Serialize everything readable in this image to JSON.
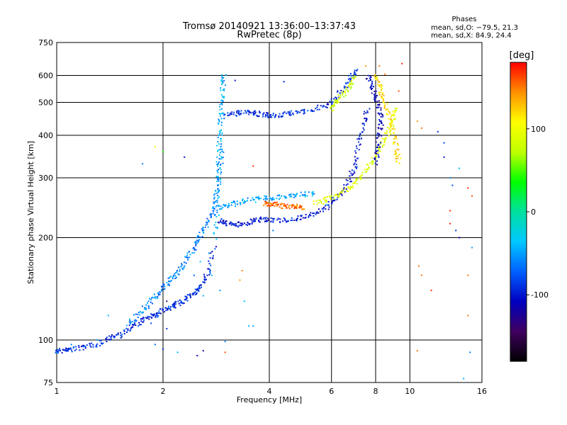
{
  "chart_data": {
    "type": "scatter",
    "title": "Tromsø 20140921 13:36:00–13:37:43",
    "subtitle": "RwPretec (8p)",
    "xlabel": "Frequency [MHz]",
    "ylabel": "Stationary phase Virtual Height [km]",
    "x_scale": "log",
    "y_scale": "log",
    "xlim": [
      1,
      16
    ],
    "ylim": [
      75,
      750
    ],
    "x_ticks": [
      1,
      2,
      4,
      6,
      8,
      10,
      16
    ],
    "y_ticks": [
      75,
      100,
      200,
      300,
      400,
      500,
      600,
      750
    ],
    "grid": true,
    "phases": {
      "heading": "Phases",
      "line_o": "mean, sd,O: −79.5, 21.3",
      "line_x": "mean, sd,X:  84.9, 24.4"
    },
    "colorbar": {
      "label": "[deg]",
      "ticks": [
        100,
        0,
        -100
      ],
      "range": [
        -180,
        180
      ],
      "colors": [
        "#000000",
        "#400060",
        "#0000c0",
        "#0060ff",
        "#00c8ff",
        "#00e0a0",
        "#00ff00",
        "#c0ff00",
        "#ffff00",
        "#ff9000",
        "#ff0000"
      ]
    },
    "series": [
      {
        "color_deg": -90,
        "points": [
          [
            1.0,
            93
          ],
          [
            1.05,
            93
          ],
          [
            1.1,
            94
          ],
          [
            1.2,
            95
          ],
          [
            1.3,
            97
          ],
          [
            1.4,
            101
          ],
          [
            1.5,
            103
          ],
          [
            1.6,
            108
          ],
          [
            1.7,
            112
          ],
          [
            1.8,
            116
          ],
          [
            1.9,
            118
          ],
          [
            2.0,
            122
          ],
          [
            2.1,
            125
          ],
          [
            2.2,
            128
          ],
          [
            2.3,
            131
          ],
          [
            2.4,
            135
          ],
          [
            2.5,
            140
          ],
          [
            2.6,
            147
          ],
          [
            2.7,
            160
          ],
          [
            2.8,
            190
          ]
        ]
      },
      {
        "color_deg": -60,
        "points": [
          [
            1.6,
            112
          ],
          [
            1.7,
            118
          ],
          [
            1.8,
            126
          ],
          [
            1.9,
            134
          ],
          [
            2.0,
            142
          ],
          [
            2.1,
            150
          ],
          [
            2.2,
            158
          ],
          [
            2.3,
            168
          ],
          [
            2.4,
            180
          ],
          [
            2.5,
            195
          ],
          [
            2.6,
            210
          ],
          [
            2.7,
            225
          ],
          [
            2.8,
            245
          ],
          [
            2.85,
            275
          ],
          [
            2.9,
            320
          ],
          [
            2.95,
            380
          ]
        ]
      },
      {
        "color_deg": -45,
        "points": [
          [
            2.82,
            200
          ],
          [
            2.85,
            250
          ],
          [
            2.87,
            300
          ],
          [
            2.88,
            350
          ],
          [
            2.9,
            400
          ],
          [
            2.92,
            450
          ],
          [
            2.94,
            500
          ],
          [
            2.96,
            560
          ],
          [
            2.98,
            610
          ]
        ]
      },
      {
        "color_deg": -90,
        "points": [
          [
            3.0,
            455
          ],
          [
            3.2,
            462
          ],
          [
            3.4,
            470
          ],
          [
            3.6,
            468
          ],
          [
            3.8,
            460
          ],
          [
            4.0,
            458
          ],
          [
            4.3,
            460
          ],
          [
            4.6,
            465
          ],
          [
            5.0,
            470
          ],
          [
            5.5,
            480
          ],
          [
            6.0,
            500
          ],
          [
            6.4,
            540
          ],
          [
            6.8,
            590
          ],
          [
            7.1,
            625
          ]
        ]
      },
      {
        "color_deg": -100,
        "points": [
          [
            2.9,
            225
          ],
          [
            3.0,
            220
          ],
          [
            3.2,
            218
          ],
          [
            3.4,
            220
          ],
          [
            3.6,
            224
          ],
          [
            3.8,
            226
          ],
          [
            4.0,
            226
          ],
          [
            4.4,
            225
          ],
          [
            4.8,
            228
          ],
          [
            5.2,
            232
          ],
          [
            5.6,
            240
          ],
          [
            6.0,
            252
          ],
          [
            6.4,
            270
          ],
          [
            6.8,
            300
          ],
          [
            7.0,
            330
          ],
          [
            7.2,
            380
          ],
          [
            7.4,
            430
          ],
          [
            7.6,
            480
          ]
        ]
      },
      {
        "color_deg": -50,
        "points": [
          [
            2.9,
            245
          ],
          [
            3.1,
            250
          ],
          [
            3.3,
            255
          ],
          [
            3.6,
            258
          ],
          [
            3.9,
            262
          ],
          [
            4.2,
            262
          ],
          [
            4.6,
            265
          ],
          [
            5.0,
            268
          ],
          [
            5.4,
            270
          ]
        ]
      },
      {
        "color_deg": 150,
        "points": [
          [
            3.9,
            252
          ],
          [
            4.0,
            250
          ],
          [
            4.2,
            250
          ],
          [
            4.4,
            248
          ],
          [
            4.6,
            247
          ],
          [
            4.8,
            246
          ],
          [
            5.0,
            246
          ]
        ]
      },
      {
        "color_deg": 90,
        "points": [
          [
            5.4,
            252
          ],
          [
            5.8,
            258
          ],
          [
            6.2,
            265
          ],
          [
            6.6,
            275
          ],
          [
            7.0,
            290
          ],
          [
            7.4,
            310
          ],
          [
            7.8,
            335
          ],
          [
            8.2,
            360
          ],
          [
            8.5,
            390
          ],
          [
            8.8,
            420
          ],
          [
            9.0,
            450
          ],
          [
            9.1,
            480
          ]
        ]
      },
      {
        "color_deg": 80,
        "points": [
          [
            6.0,
            480
          ],
          [
            6.2,
            500
          ],
          [
            6.5,
            530
          ],
          [
            6.8,
            560
          ],
          [
            7.0,
            600
          ]
        ]
      },
      {
        "color_deg": 120,
        "points": [
          [
            8.0,
            600
          ],
          [
            8.2,
            560
          ],
          [
            8.4,
            520
          ],
          [
            8.6,
            480
          ],
          [
            8.8,
            440
          ],
          [
            9.0,
            400
          ],
          [
            9.2,
            360
          ],
          [
            9.3,
            330
          ]
        ]
      },
      {
        "color_deg": -110,
        "points": [
          [
            7.6,
            600
          ],
          [
            7.8,
            560
          ],
          [
            8.0,
            520
          ],
          [
            8.2,
            480
          ],
          [
            8.3,
            440
          ],
          [
            8.2,
            400
          ],
          [
            8.1,
            360
          ],
          [
            8.0,
            330
          ]
        ]
      }
    ],
    "scatter_points": [
      [
        1.75,
        330,
        -60
      ],
      [
        1.9,
        370,
        110
      ],
      [
        2.0,
        358,
        40
      ],
      [
        2.3,
        345,
        -100
      ],
      [
        3.2,
        580,
        -100
      ],
      [
        3.35,
        160,
        150
      ],
      [
        3.3,
        150,
        140
      ],
      [
        3.5,
        110,
        -40
      ],
      [
        3.6,
        325,
        170
      ],
      [
        4.1,
        210,
        -60
      ],
      [
        4.4,
        575,
        -100
      ],
      [
        5.8,
        250,
        -30
      ],
      [
        7.5,
        640,
        140
      ],
      [
        8.2,
        640,
        150
      ],
      [
        8.5,
        605,
        150
      ],
      [
        9.5,
        650,
        170
      ],
      [
        9.3,
        540,
        160
      ],
      [
        10.5,
        440,
        140
      ],
      [
        10.8,
        420,
        150
      ],
      [
        12.0,
        410,
        -90
      ],
      [
        12.5,
        380,
        -80
      ],
      [
        12.5,
        345,
        -100
      ],
      [
        13.0,
        300,
        -60
      ],
      [
        13.2,
        285,
        -80
      ],
      [
        13.8,
        320,
        -40
      ],
      [
        14.6,
        280,
        170
      ],
      [
        15.0,
        265,
        160
      ],
      [
        13.0,
        240,
        170
      ],
      [
        13.0,
        220,
        170
      ],
      [
        13.5,
        210,
        -90
      ],
      [
        13.8,
        200,
        -110
      ],
      [
        15.0,
        187,
        -50
      ],
      [
        10.6,
        165,
        150
      ],
      [
        10.8,
        155,
        150
      ],
      [
        11.5,
        140,
        170
      ],
      [
        14.6,
        155,
        150
      ],
      [
        14.6,
        118,
        150
      ],
      [
        14.8,
        92,
        -60
      ],
      [
        14.2,
        77,
        -40
      ],
      [
        10.5,
        93,
        150
      ],
      [
        2.2,
        92,
        -40
      ],
      [
        2.0,
        94,
        -90
      ],
      [
        1.9,
        97,
        -70
      ],
      [
        1.2,
        96,
        -60
      ],
      [
        1.1,
        97,
        -60
      ],
      [
        1.0,
        92,
        -50
      ],
      [
        1.3,
        100,
        -50
      ],
      [
        1.4,
        118,
        -40
      ],
      [
        2.6,
        93,
        -120
      ],
      [
        3.0,
        92,
        160
      ],
      [
        3.0,
        99,
        -60
      ],
      [
        2.9,
        140,
        -50
      ],
      [
        3.4,
        130,
        -40
      ],
      [
        3.6,
        110,
        -50
      ],
      [
        2.5,
        90,
        -110
      ],
      [
        1.8,
        116,
        -120
      ],
      [
        1.85,
        112,
        -80
      ],
      [
        2.05,
        108,
        -90
      ],
      [
        2.05,
        130,
        -140
      ],
      [
        2.45,
        155,
        -70
      ],
      [
        2.6,
        135,
        -45
      ],
      [
        2.55,
        170,
        -40
      ],
      [
        2.7,
        180,
        -60
      ],
      [
        2.75,
        155,
        -45
      ]
    ]
  }
}
